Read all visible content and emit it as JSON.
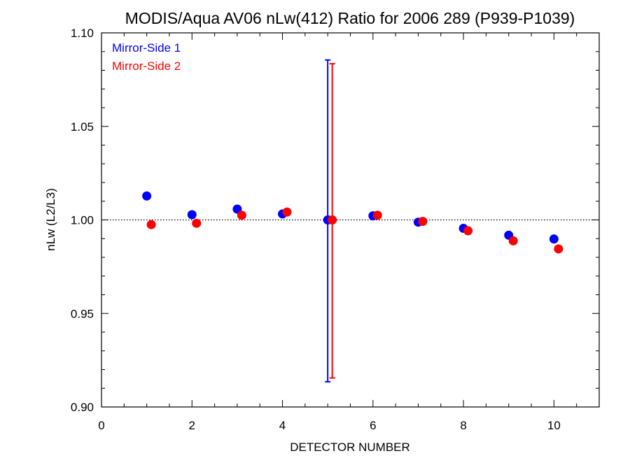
{
  "chart_data": {
    "type": "scatter",
    "title": "MODIS/Aqua AV06 nLw(412) Ratio for 2006 289 (P939-P1039)",
    "xlabel": "DETECTOR NUMBER",
    "ylabel": "nLw (L2/L3)",
    "xlim": [
      0,
      11
    ],
    "ylim": [
      0.9,
      1.1
    ],
    "xticks": [
      0,
      2,
      4,
      6,
      8,
      10
    ],
    "xtick_labels": [
      "0",
      "2",
      "4",
      "6",
      "8",
      "10"
    ],
    "yticks": [
      0.9,
      0.95,
      1.0,
      1.05,
      1.1
    ],
    "ytick_labels": [
      "0.90",
      "0.95",
      "1.00",
      "1.05",
      "1.10"
    ],
    "reference_line": {
      "y": 1.0,
      "style": "dotted"
    },
    "legend_position": "top-left",
    "series": [
      {
        "name": "Mirror-Side 1",
        "color": "#0000ff",
        "x": [
          1,
          2,
          3,
          4,
          5,
          6,
          7,
          8,
          9,
          10
        ],
        "y": [
          1.0128,
          1.0028,
          1.0058,
          1.0032,
          1.0,
          1.0022,
          0.9988,
          0.9955,
          0.9918,
          0.9898
        ],
        "error_bar": {
          "x": 5,
          "low": 0.9135,
          "high": 1.0855
        }
      },
      {
        "name": "Mirror-Side 2",
        "color": "#ff0000",
        "x": [
          1.1,
          2.1,
          3.1,
          4.1,
          5.1,
          6.1,
          7.1,
          8.1,
          9.1,
          10.1
        ],
        "y": [
          0.9975,
          0.9982,
          1.0025,
          1.0042,
          1.0,
          1.0025,
          0.9992,
          0.9942,
          0.9888,
          0.9845
        ],
        "error_bar": {
          "x": 5.1,
          "low": 0.9155,
          "high": 1.0835
        }
      }
    ]
  }
}
